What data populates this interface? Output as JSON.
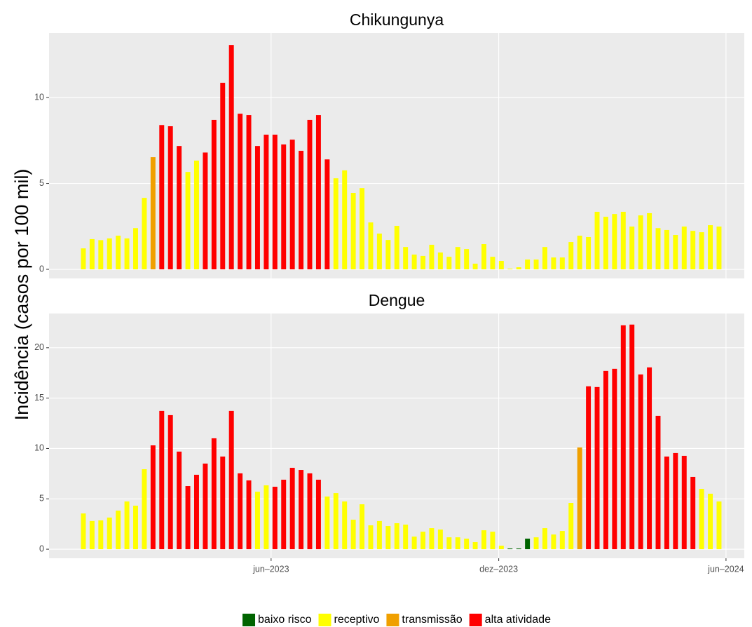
{
  "chart_data": {
    "type": "bar",
    "ylabel": "Incidência (casos por 100 mil)",
    "categories": [
      null,
      null,
      null,
      null,
      null,
      null,
      null,
      null,
      null,
      null,
      null,
      null,
      null,
      null,
      null,
      null,
      null,
      null,
      null,
      null,
      null,
      null,
      null,
      null,
      null,
      null,
      null,
      null,
      null,
      null,
      null,
      null,
      null,
      null,
      null,
      null,
      null,
      null,
      null,
      null,
      null,
      null,
      null,
      null,
      null,
      null,
      null,
      null,
      null,
      null,
      null,
      null,
      null,
      null,
      null,
      null,
      null,
      null,
      null,
      null,
      null,
      null,
      null,
      null,
      null,
      null,
      null,
      null,
      null,
      null,
      null,
      null,
      null,
      null
    ],
    "xlim": [
      -3.94,
      75.9
    ],
    "xticks": [
      {
        "value": 21.56,
        "label": "jun–2023"
      },
      {
        "value": 47.7,
        "label": "dez–2023"
      },
      {
        "value": 73.8,
        "label": "jun–2024"
      }
    ],
    "grid": true,
    "legend": "bottom",
    "series": [
      {
        "name": "baixo risco",
        "color": "#006400"
      },
      {
        "name": "receptivo",
        "color": "#ffff00"
      },
      {
        "name": "transmissão",
        "color": "#f0a000"
      },
      {
        "name": "alta atividade",
        "color": "#ff0000"
      }
    ],
    "panels": [
      {
        "title": "Chikungunya",
        "ylim": [
          -0.53,
          13.76
        ],
        "yticks": [
          0,
          5,
          10
        ],
        "series": [
          {
            "values": [
              null,
              null,
              null,
              null,
              null,
              null,
              null,
              null,
              null,
              null,
              null,
              null,
              null,
              null,
              null,
              null,
              null,
              null,
              null,
              null,
              null,
              null,
              null,
              null,
              null,
              null,
              null,
              null,
              null,
              null,
              null,
              null,
              null,
              null,
              null,
              null,
              null,
              null,
              null,
              null,
              null,
              null,
              null,
              null,
              null,
              null,
              null,
              null,
              null,
              null,
              null,
              null,
              null,
              null,
              null,
              null,
              null,
              null,
              null,
              null,
              null,
              null,
              null,
              null,
              null,
              null,
              null,
              null,
              null,
              null,
              null,
              null,
              null,
              null
            ]
          },
          {
            "values": [
              1.22,
              1.76,
              1.7,
              1.8,
              1.96,
              1.8,
              2.4,
              4.16,
              null,
              null,
              null,
              null,
              5.67,
              6.33,
              null,
              null,
              null,
              null,
              null,
              null,
              null,
              null,
              null,
              null,
              null,
              null,
              null,
              null,
              null,
              5.3,
              5.76,
              4.45,
              4.73,
              2.73,
              2.08,
              1.71,
              2.53,
              1.3,
              0.86,
              0.78,
              1.43,
              0.98,
              0.73,
              1.3,
              1.18,
              0.33,
              1.47,
              0.73,
              0.49,
              0.04,
              0.12,
              0.57,
              0.57,
              1.3,
              0.69,
              0.69,
              1.59,
              1.96,
              1.88,
              3.35,
              3.06,
              3.22,
              3.35,
              2.49,
              3.14,
              3.27,
              2.4,
              2.29,
              2.0,
              2.49,
              2.24,
              2.16,
              2.57,
              2.49
            ]
          },
          {
            "values": [
              null,
              null,
              null,
              null,
              null,
              null,
              null,
              null,
              6.53,
              null,
              null,
              null,
              null,
              null,
              null,
              null,
              null,
              null,
              null,
              null,
              null,
              null,
              null,
              null,
              null,
              null,
              null,
              null,
              null,
              null,
              null,
              null,
              null,
              null,
              null,
              null,
              null,
              null,
              null,
              null,
              null,
              null,
              null,
              null,
              null,
              null,
              null,
              null,
              null,
              null,
              null,
              null,
              null,
              null,
              null,
              null,
              null,
              null,
              null,
              null,
              null,
              null,
              null,
              null,
              null,
              null,
              null,
              null,
              null,
              null,
              null,
              null,
              null,
              null
            ]
          },
          {
            "values": [
              null,
              null,
              null,
              null,
              null,
              null,
              null,
              null,
              null,
              8.4,
              8.33,
              7.18,
              null,
              null,
              6.8,
              8.7,
              10.86,
              13.06,
              9.06,
              8.98,
              7.18,
              7.84,
              7.84,
              7.27,
              7.55,
              6.9,
              8.7,
              8.98,
              6.4,
              null,
              null,
              null,
              null,
              null,
              null,
              null,
              null,
              null,
              null,
              null,
              null,
              null,
              null,
              null,
              null,
              null,
              null,
              null,
              null,
              null,
              null,
              null,
              null,
              null,
              null,
              null,
              null,
              null,
              null,
              null,
              null,
              null,
              null,
              null,
              null,
              null,
              null,
              null,
              null,
              null,
              null,
              null,
              null,
              null
            ]
          }
        ]
      },
      {
        "title": "Dengue",
        "ylim": [
          -0.9,
          23.4
        ],
        "yticks": [
          0,
          5,
          10,
          15,
          20
        ],
        "series": [
          {
            "values": [
              null,
              null,
              null,
              null,
              null,
              null,
              null,
              null,
              null,
              null,
              null,
              null,
              null,
              null,
              null,
              null,
              null,
              null,
              null,
              null,
              null,
              null,
              null,
              null,
              null,
              null,
              null,
              null,
              null,
              null,
              null,
              null,
              null,
              null,
              null,
              null,
              null,
              null,
              null,
              null,
              null,
              null,
              null,
              null,
              null,
              null,
              null,
              null,
              null,
              0.07,
              0.07,
              1.05,
              null,
              null,
              null,
              null,
              null,
              null,
              null,
              null,
              null,
              null,
              null,
              null,
              null,
              null,
              null,
              null,
              null,
              null,
              null,
              null,
              null,
              null
            ]
          },
          {
            "values": [
              3.55,
              2.8,
              2.86,
              3.14,
              3.83,
              4.74,
              4.32,
              7.94,
              null,
              null,
              null,
              null,
              null,
              null,
              null,
              null,
              null,
              null,
              null,
              null,
              5.71,
              6.34,
              null,
              null,
              null,
              null,
              null,
              null,
              5.23,
              5.57,
              4.74,
              2.93,
              4.46,
              2.37,
              2.8,
              2.3,
              2.58,
              2.44,
              1.25,
              1.74,
              2.09,
              1.95,
              1.18,
              1.18,
              1.05,
              0.7,
              1.88,
              1.74,
              0.35,
              null,
              null,
              null,
              1.18,
              2.09,
              1.46,
              1.81,
              4.6,
              null,
              null,
              null,
              null,
              null,
              null,
              null,
              null,
              null,
              null,
              null,
              null,
              null,
              null,
              5.99,
              5.51,
              4.74
            ]
          },
          {
            "values": [
              null,
              null,
              null,
              null,
              null,
              null,
              null,
              null,
              null,
              null,
              null,
              null,
              null,
              null,
              null,
              null,
              null,
              null,
              null,
              null,
              null,
              null,
              null,
              null,
              null,
              null,
              null,
              null,
              null,
              null,
              null,
              null,
              null,
              null,
              null,
              null,
              null,
              null,
              null,
              null,
              null,
              null,
              null,
              null,
              null,
              null,
              null,
              null,
              null,
              null,
              null,
              null,
              null,
              null,
              null,
              null,
              null,
              10.1,
              null,
              null,
              null,
              null,
              null,
              null,
              null,
              null,
              null,
              null,
              null,
              null,
              null,
              null,
              null,
              null
            ]
          },
          {
            "values": [
              null,
              null,
              null,
              null,
              null,
              null,
              null,
              null,
              10.31,
              13.73,
              13.31,
              9.69,
              6.27,
              7.39,
              8.5,
              11.01,
              9.2,
              13.73,
              7.53,
              6.83,
              null,
              null,
              6.2,
              6.9,
              8.08,
              7.87,
              7.53,
              6.9,
              null,
              null,
              null,
              null,
              null,
              null,
              null,
              null,
              null,
              null,
              null,
              null,
              null,
              null,
              null,
              null,
              null,
              null,
              null,
              null,
              null,
              null,
              null,
              null,
              null,
              null,
              null,
              null,
              null,
              null,
              16.17,
              16.1,
              17.7,
              17.91,
              22.23,
              22.3,
              17.35,
              18.05,
              13.24,
              9.2,
              9.55,
              9.27,
              7.18,
              null,
              null,
              null
            ]
          }
        ]
      }
    ]
  }
}
